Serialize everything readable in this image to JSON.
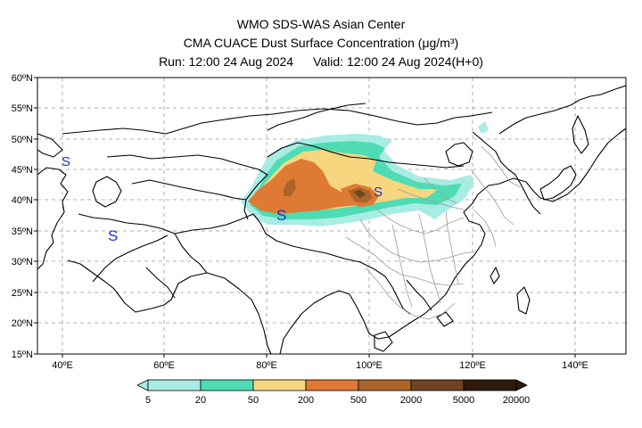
{
  "header": {
    "line1": "WMO SDS-WAS Asian Center",
    "line2": "CMA CUACE Dust Surface Concentration (μg/m³)",
    "run": "Run: 12:00 24 Aug 2024",
    "valid": "Valid: 12:00 24 Aug 2024(H+0)"
  },
  "map": {
    "lon_range": [
      35,
      150
    ],
    "lat_range": [
      15,
      60
    ],
    "lon_ticks": [
      "40ºE",
      "60ºE",
      "80ºE",
      "100ºE",
      "120ºE",
      "140ºE"
    ],
    "lat_ticks": [
      "60ºN",
      "55ºN",
      "50ºN",
      "45ºN",
      "40ºN",
      "35ºN",
      "30ºN",
      "25ºN",
      "20ºN",
      "15ºN"
    ],
    "symbol": "S",
    "symbol_color": "#1a2fd0"
  },
  "legend": {
    "levels": [
      "5",
      "20",
      "50",
      "200",
      "500",
      "2000",
      "5000",
      "20000"
    ],
    "colors": [
      "#a8ece4",
      "#4fdcb4",
      "#f6d67e",
      "#de7a33",
      "#ac6427",
      "#6e4422",
      "#2e1a0c"
    ]
  }
}
